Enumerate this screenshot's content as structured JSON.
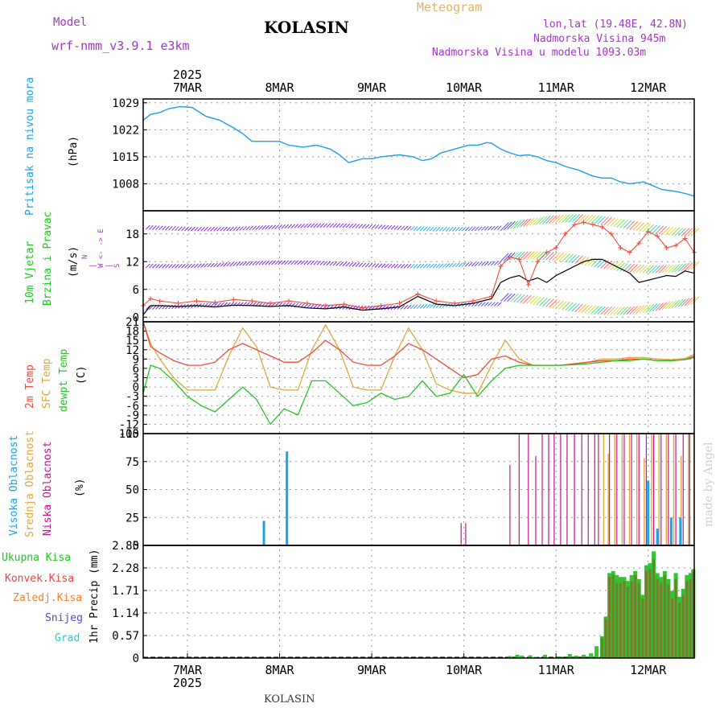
{
  "header": {
    "model_label": "Model",
    "model_value": "wrf-nmm_v3.9.1 e3km",
    "station": "KOLASIN",
    "product": "Meteogram",
    "lonlat": "lon,lat (19.48E, 42.8N)",
    "elevation": "Nadmorska Visina 945m",
    "model_elevation": "Nadmorska Visina u modelu 1093.03m"
  },
  "year_label": "2025",
  "footer_station": "KOLASIN",
  "watermark": "made by Angel",
  "colors": {
    "pressure": "#1e9fe6",
    "temp2m": "#ef4b3a",
    "sfc": "#e0a640",
    "dewpt": "#22c422",
    "visoka": "#1e9fe6",
    "srednja": "#e0a640",
    "niska": "#c0158f",
    "precip_total": "#33c433",
    "precip_conv": "#e04848",
    "wind_line": "#000000"
  },
  "panels": {
    "pressure": {
      "label": "Pritisak na nivou mora",
      "unit": "(hPa)"
    },
    "wind": {
      "label1": "10m Vjetar",
      "label2": "Brzina i Pravac",
      "unit": "(m/s)",
      "compass": "N\n|\nW <- -> E\n|\nS"
    },
    "temp": {
      "label1": "2m Temp",
      "label2": "SFC Temp",
      "label3": "dewpt Temp",
      "unit": "(C)"
    },
    "cloud": {
      "label1": "Visoka Oblacnost",
      "label2": "Srednja Oblacnost",
      "label3": "Niska Oblacnost",
      "unit": "(%)"
    },
    "precip": {
      "legend": [
        "Ukupna Kisa",
        "Konvek.Kisa",
        "Zaledj.Kisa",
        "Snijeg",
        "Grad"
      ],
      "unit": "1hr Precip (mm)"
    }
  },
  "chart_data": {
    "type": "line",
    "title": "KOLASIN Meteogram",
    "x_ticks": [
      "7MAR",
      "8MAR",
      "9MAR",
      "10MAR",
      "11MAR",
      "12MAR"
    ],
    "x_range_days": [
      6.52,
      12.5
    ],
    "pressure": {
      "ylabel": "Pritisak na nivou mora (hPa)",
      "ylim": [
        1001,
        1030
      ],
      "yticks": [
        1029,
        1022,
        1015,
        1008
      ],
      "x": [
        6.52,
        6.6,
        6.7,
        6.8,
        6.92,
        7.05,
        7.2,
        7.35,
        7.5,
        7.6,
        7.7,
        7.85,
        8.0,
        8.1,
        8.25,
        8.4,
        8.55,
        8.65,
        8.75,
        8.9,
        9.0,
        9.1,
        9.3,
        9.45,
        9.55,
        9.65,
        9.75,
        9.9,
        10.05,
        10.15,
        10.25,
        10.3,
        10.4,
        10.5,
        10.6,
        10.7,
        10.8,
        10.9,
        11.0,
        11.1,
        11.25,
        11.4,
        11.5,
        11.6,
        11.7,
        11.8,
        11.95,
        12.05,
        12.15,
        12.3,
        12.4,
        12.5
      ],
      "y": [
        1024.5,
        1026,
        1026.5,
        1027.5,
        1028,
        1027.8,
        1025.5,
        1024.5,
        1022.5,
        1021,
        1019,
        1019,
        1019,
        1018,
        1017.5,
        1018,
        1017,
        1015.5,
        1013.5,
        1014.5,
        1014.5,
        1015,
        1015.5,
        1015,
        1014,
        1014.5,
        1016,
        1017,
        1018,
        1018,
        1018.7,
        1018.5,
        1017,
        1016,
        1015.3,
        1015.5,
        1015,
        1014,
        1013.5,
        1012.5,
        1011.5,
        1010,
        1009.5,
        1009.5,
        1008.5,
        1008,
        1008.5,
        1007.5,
        1006.5,
        1006,
        1005.5,
        1004.8
      ]
    },
    "wind": {
      "ylabel": "10m Vjetar Brzina i Pravac (m/s)",
      "ylim": [
        -1,
        23
      ],
      "yticks": [
        0,
        6,
        12,
        18
      ],
      "x": [
        6.52,
        6.6,
        6.7,
        6.9,
        7.1,
        7.3,
        7.5,
        7.7,
        7.9,
        8.1,
        8.3,
        8.5,
        8.7,
        8.9,
        9.1,
        9.3,
        9.5,
        9.7,
        9.9,
        10.1,
        10.3,
        10.4,
        10.5,
        10.6,
        10.7,
        10.8,
        10.9,
        11.0,
        11.1,
        11.2,
        11.3,
        11.4,
        11.5,
        11.6,
        11.7,
        11.8,
        11.9,
        12.0,
        12.1,
        12.2,
        12.3,
        12.4,
        12.5
      ],
      "speed": [
        0.5,
        2.5,
        2.5,
        2.3,
        2.5,
        2.2,
        2.6,
        2.5,
        2.3,
        2.5,
        2.0,
        1.8,
        2.2,
        1.5,
        1.8,
        2.2,
        4.5,
        2.8,
        2.5,
        3.0,
        4.0,
        7.5,
        8.5,
        9.0,
        7.8,
        8.5,
        7.5,
        9.0,
        10.0,
        11.0,
        12.0,
        12.5,
        12.5,
        11.5,
        10.5,
        9.5,
        7.5,
        8.0,
        8.5,
        9.0,
        8.8,
        10.0,
        9.5
      ],
      "gust": [
        2.5,
        4.0,
        3.5,
        3.0,
        3.5,
        3.2,
        3.8,
        3.5,
        3.0,
        3.5,
        3.0,
        2.5,
        2.8,
        2.0,
        2.5,
        3.0,
        5.0,
        3.5,
        3.0,
        3.5,
        4.5,
        11.0,
        13.0,
        12.5,
        7.0,
        12.0,
        14.0,
        15.0,
        18.0,
        20.0,
        20.5,
        20.0,
        19.5,
        18.0,
        15.0,
        14.0,
        16.0,
        18.5,
        17.5,
        15.0,
        15.5,
        17.0,
        14.0
      ]
    },
    "temperature": {
      "ylabel": "2m Temp / SFC Temp / dewpt Temp (C)",
      "ylim": [
        -15,
        21
      ],
      "yticks": [
        21,
        18,
        15,
        12,
        9,
        6,
        3,
        0,
        -3,
        -6,
        -9,
        -12,
        -15
      ],
      "x": [
        6.52,
        6.6,
        6.7,
        6.85,
        7.0,
        7.15,
        7.3,
        7.45,
        7.6,
        7.75,
        7.9,
        8.05,
        8.2,
        8.35,
        8.5,
        8.65,
        8.8,
        8.95,
        9.1,
        9.25,
        9.4,
        9.55,
        9.7,
        9.85,
        10.0,
        10.15,
        10.3,
        10.45,
        10.6,
        10.75,
        10.9,
        11.05,
        11.2,
        11.35,
        11.5,
        11.65,
        11.8,
        11.95,
        12.1,
        12.25,
        12.4,
        12.5
      ],
      "t2m": [
        21,
        13,
        11,
        8.5,
        7,
        7,
        8,
        12,
        14,
        12,
        10,
        8,
        8,
        11,
        15,
        12,
        8,
        7,
        7,
        10,
        14,
        12,
        9,
        6,
        3,
        4,
        9,
        10,
        8,
        7,
        7,
        7,
        7.5,
        8,
        8.5,
        8.5,
        9,
        9,
        8.5,
        8.5,
        8.8,
        10
      ],
      "sfc": [
        21,
        14,
        9,
        3,
        -1,
        -1,
        -1,
        10,
        19,
        13,
        0,
        -1,
        -1,
        12,
        20,
        12,
        0,
        -1,
        -1,
        10,
        19,
        12,
        1,
        -1,
        -2,
        -2,
        7,
        15,
        9,
        7,
        7,
        7,
        7.5,
        8,
        9,
        9,
        9.5,
        9.5,
        9,
        8.8,
        9.2,
        10.5
      ],
      "dewpt": [
        -2,
        7,
        6,
        2,
        -3,
        -6,
        -8,
        -4,
        0,
        -4,
        -12,
        -7,
        -9,
        2,
        2,
        -2,
        -6,
        -5,
        -2,
        -4,
        -3,
        2,
        -3,
        -2,
        4,
        -3,
        2,
        6,
        7,
        7,
        7,
        7,
        7.2,
        7.5,
        8,
        8.5,
        8.5,
        9,
        8.5,
        8.5,
        8.8,
        9.5
      ]
    },
    "cloud": {
      "ylabel": "Oblacnost (%)",
      "ylim": [
        0,
        100
      ],
      "yticks": [
        100,
        75,
        50,
        25,
        0
      ],
      "visoka": [
        {
          "x": 7.83,
          "v": 22
        },
        {
          "x": 8.08,
          "v": 84
        },
        {
          "x": 12.0,
          "v": 58
        },
        {
          "x": 12.1,
          "v": 15
        },
        {
          "x": 12.25,
          "v": 25
        },
        {
          "x": 12.35,
          "v": 25
        }
      ],
      "srednja": [
        {
          "x": 11.5,
          "v": 100
        },
        {
          "x": 11.55,
          "v": 82
        },
        {
          "x": 11.62,
          "v": 100
        },
        {
          "x": 11.7,
          "v": 100
        },
        {
          "x": 11.78,
          "v": 100
        },
        {
          "x": 11.86,
          "v": 100
        },
        {
          "x": 11.94,
          "v": 78
        },
        {
          "x": 12.02,
          "v": 100
        },
        {
          "x": 12.1,
          "v": 100
        },
        {
          "x": 12.18,
          "v": 100
        },
        {
          "x": 12.26,
          "v": 100
        },
        {
          "x": 12.34,
          "v": 80
        },
        {
          "x": 12.42,
          "v": 100
        },
        {
          "x": 12.48,
          "v": 100
        }
      ],
      "niska": [
        {
          "x": 9.97,
          "v": 20
        },
        {
          "x": 10.02,
          "v": 20
        },
        {
          "x": 10.5,
          "v": 72
        },
        {
          "x": 10.6,
          "v": 100
        },
        {
          "x": 10.7,
          "v": 100
        },
        {
          "x": 10.78,
          "v": 80
        },
        {
          "x": 10.85,
          "v": 100
        },
        {
          "x": 10.92,
          "v": 100
        },
        {
          "x": 10.98,
          "v": 100
        },
        {
          "x": 11.05,
          "v": 100
        },
        {
          "x": 11.12,
          "v": 100
        },
        {
          "x": 11.2,
          "v": 100
        },
        {
          "x": 11.28,
          "v": 100
        },
        {
          "x": 11.35,
          "v": 100
        },
        {
          "x": 11.42,
          "v": 100
        },
        {
          "x": 11.46,
          "v": 100
        },
        {
          "x": 11.58,
          "v": 100
        },
        {
          "x": 11.66,
          "v": 100
        },
        {
          "x": 11.74,
          "v": 100
        },
        {
          "x": 11.82,
          "v": 100
        },
        {
          "x": 11.9,
          "v": 100
        },
        {
          "x": 11.98,
          "v": 100
        },
        {
          "x": 12.06,
          "v": 100
        },
        {
          "x": 12.14,
          "v": 100
        },
        {
          "x": 12.22,
          "v": 100
        },
        {
          "x": 12.3,
          "v": 100
        },
        {
          "x": 12.38,
          "v": 100
        },
        {
          "x": 12.45,
          "v": 100
        }
      ]
    },
    "precip": {
      "ylabel": "1hr Precip (mm)",
      "ylim": [
        0,
        2.85
      ],
      "yticks": [
        2.85,
        2.28,
        1.71,
        1.14,
        0.57,
        0
      ],
      "bars": [
        {
          "x": 10.5,
          "total": 0.05,
          "conv": 0.0
        },
        {
          "x": 10.58,
          "total": 0.08,
          "conv": 0.0
        },
        {
          "x": 10.63,
          "total": 0.06,
          "conv": 0.0
        },
        {
          "x": 10.72,
          "total": 0.07,
          "conv": 0.0
        },
        {
          "x": 10.78,
          "total": 0.03,
          "conv": 0.0
        },
        {
          "x": 10.88,
          "total": 0.08,
          "conv": 0.0
        },
        {
          "x": 11.05,
          "total": 0.04,
          "conv": 0.0
        },
        {
          "x": 11.15,
          "total": 0.1,
          "conv": 0.0
        },
        {
          "x": 11.22,
          "total": 0.06,
          "conv": 0.0
        },
        {
          "x": 11.3,
          "total": 0.08,
          "conv": 0.0
        },
        {
          "x": 11.38,
          "total": 0.12,
          "conv": 0.0
        },
        {
          "x": 11.44,
          "total": 0.3,
          "conv": 0.0
        },
        {
          "x": 11.5,
          "total": 0.55,
          "conv": 0.5
        },
        {
          "x": 11.54,
          "total": 1.05,
          "conv": 1.0
        },
        {
          "x": 11.58,
          "total": 2.15,
          "conv": 2.05
        },
        {
          "x": 11.62,
          "total": 2.2,
          "conv": 2.1
        },
        {
          "x": 11.66,
          "total": 2.1,
          "conv": 1.9
        },
        {
          "x": 11.7,
          "total": 2.05,
          "conv": 1.9
        },
        {
          "x": 11.74,
          "total": 2.05,
          "conv": 1.95
        },
        {
          "x": 11.78,
          "total": 1.95,
          "conv": 1.8
        },
        {
          "x": 11.82,
          "total": 2.1,
          "conv": 1.95
        },
        {
          "x": 11.86,
          "total": 2.2,
          "conv": 2.1
        },
        {
          "x": 11.9,
          "total": 2.0,
          "conv": 1.9
        },
        {
          "x": 11.94,
          "total": 1.6,
          "conv": 1.5
        },
        {
          "x": 11.98,
          "total": 2.35,
          "conv": 2.2
        },
        {
          "x": 12.02,
          "total": 2.4,
          "conv": 2.25
        },
        {
          "x": 12.06,
          "total": 2.7,
          "conv": 2.5
        },
        {
          "x": 12.1,
          "total": 2.15,
          "conv": 2.0
        },
        {
          "x": 12.14,
          "total": 2.05,
          "conv": 1.9
        },
        {
          "x": 12.18,
          "total": 2.2,
          "conv": 2.1
        },
        {
          "x": 12.22,
          "total": 2.0,
          "conv": 1.85
        },
        {
          "x": 12.26,
          "total": 1.7,
          "conv": 1.5
        },
        {
          "x": 12.3,
          "total": 2.15,
          "conv": 2.0
        },
        {
          "x": 12.34,
          "total": 1.55,
          "conv": 1.4
        },
        {
          "x": 12.38,
          "total": 1.75,
          "conv": 1.6
        },
        {
          "x": 12.42,
          "total": 2.1,
          "conv": 1.95
        },
        {
          "x": 12.46,
          "total": 2.15,
          "conv": 2.0
        },
        {
          "x": 12.49,
          "total": 2.25,
          "conv": 2.2
        }
      ]
    }
  }
}
